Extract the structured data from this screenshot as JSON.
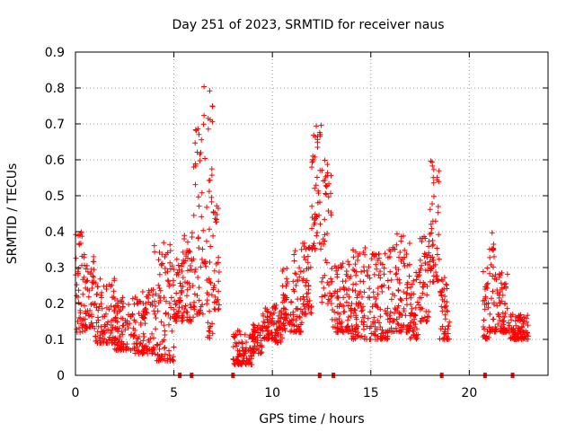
{
  "chart_data": {
    "type": "scatter",
    "title": "Day 251 of 2023, SRMTID for receiver naus",
    "xlabel": "GPS time / hours",
    "ylabel": "SRMTID / TECUs",
    "xlim": [
      0,
      24
    ],
    "ylim": [
      0,
      0.9
    ],
    "x_ticks": [
      0,
      5,
      10,
      15,
      20
    ],
    "x_tick_labels": [
      "0",
      "5",
      "10",
      "15",
      "20"
    ],
    "y_ticks": [
      0,
      0.1,
      0.2,
      0.3,
      0.4,
      0.5,
      0.6,
      0.7,
      0.8,
      0.9
    ],
    "y_tick_labels": [
      "0",
      "0.1",
      "0.2",
      "0.3",
      "0.4",
      "0.5",
      "0.6",
      "0.7",
      "0.8",
      "0.9"
    ],
    "grid": true,
    "marker": "+",
    "color": "#ff0000",
    "envelope": {
      "description": "approximate data envelope per time bin (hours): [start, end, low, high]",
      "bins": [
        [
          0.0,
          0.5,
          0.12,
          0.4
        ],
        [
          0.5,
          1.0,
          0.13,
          0.34
        ],
        [
          1.0,
          2.0,
          0.09,
          0.27
        ],
        [
          2.0,
          3.0,
          0.07,
          0.22
        ],
        [
          3.0,
          4.0,
          0.06,
          0.24
        ],
        [
          4.0,
          5.0,
          0.04,
          0.37
        ],
        [
          5.0,
          5.4,
          0.15,
          0.33
        ],
        [
          5.4,
          6.0,
          0.15,
          0.4
        ],
        [
          6.0,
          6.5,
          0.17,
          0.7
        ],
        [
          6.5,
          7.0,
          0.1,
          0.82
        ],
        [
          7.0,
          7.3,
          0.18,
          0.5
        ],
        [
          8.0,
          9.0,
          0.03,
          0.13
        ],
        [
          9.0,
          9.5,
          0.06,
          0.15
        ],
        [
          9.5,
          10.0,
          0.1,
          0.19
        ],
        [
          10.0,
          10.5,
          0.09,
          0.2
        ],
        [
          10.5,
          11.0,
          0.12,
          0.3
        ],
        [
          11.0,
          11.5,
          0.12,
          0.36
        ],
        [
          11.5,
          12.0,
          0.17,
          0.37
        ],
        [
          12.0,
          12.5,
          0.35,
          0.72
        ],
        [
          12.5,
          13.0,
          0.2,
          0.6
        ],
        [
          13.0,
          14.0,
          0.12,
          0.32
        ],
        [
          14.0,
          15.0,
          0.1,
          0.37
        ],
        [
          15.0,
          16.0,
          0.1,
          0.35
        ],
        [
          16.0,
          17.0,
          0.12,
          0.4
        ],
        [
          17.0,
          17.5,
          0.1,
          0.3
        ],
        [
          17.5,
          18.0,
          0.15,
          0.4
        ],
        [
          18.0,
          18.5,
          0.26,
          0.61
        ],
        [
          18.5,
          19.0,
          0.1,
          0.28
        ],
        [
          20.7,
          21.0,
          0.1,
          0.3
        ],
        [
          21.0,
          21.3,
          0.12,
          0.4
        ],
        [
          21.3,
          22.0,
          0.12,
          0.3
        ],
        [
          22.0,
          23.0,
          0.1,
          0.17
        ]
      ]
    },
    "zero_markers_hours": [
      5.3,
      5.9,
      8.0,
      12.4,
      13.1,
      18.6,
      20.8,
      22.2
    ]
  }
}
